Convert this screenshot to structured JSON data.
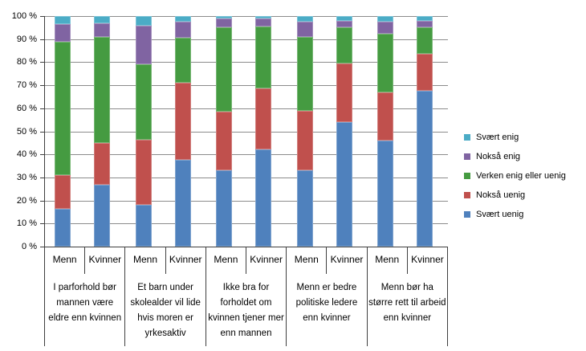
{
  "chart_data": {
    "type": "bar",
    "variant": "stacked-100-percent-column",
    "title": "",
    "xlabel": "",
    "ylabel": "",
    "y_axis": {
      "min": 0,
      "max": 100,
      "grid": true,
      "ticks": [
        "0 %",
        "10 %",
        "20 %",
        "30 %",
        "40 %",
        "50 %",
        "60 %",
        "70 %",
        "80 %",
        "90 %",
        "100 %"
      ]
    },
    "legend": {
      "position": "right",
      "items": [
        {
          "label": "Svært enig",
          "slug": "svaert-enig",
          "color": "#4BACC6"
        },
        {
          "label": "Nokså enig",
          "slug": "noksaa-enig",
          "color": "#8064A2"
        },
        {
          "label": "Verken enig eller uenig",
          "slug": "verken-enig-eller-uenig",
          "color": "#459B41"
        },
        {
          "label": "Nokså uenig",
          "slug": "noksaa-uenig",
          "color": "#C0504D"
        },
        {
          "label": "Svært uenig",
          "slug": "svaert-uenig",
          "color": "#4F81BD"
        }
      ]
    },
    "stack_order_bottom_to_top": [
      "Svært uenig",
      "Nokså uenig",
      "Verken enig eller uenig",
      "Nokså enig",
      "Svært enig"
    ],
    "groups": [
      {
        "category": "I parforhold bør mannen være eldre enn kvinnen",
        "bars": [
          {
            "label": "Menn",
            "values": {
              "Svært uenig": 16.5,
              "Nokså uenig": 14.5,
              "Verken enig eller uenig": 58,
              "Nokså enig": 7.5,
              "Svært enig": 3.5
            }
          },
          {
            "label": "Kvinner",
            "values": {
              "Svært uenig": 27,
              "Nokså uenig": 18,
              "Verken enig eller uenig": 46,
              "Nokså enig": 6,
              "Svært enig": 3
            }
          }
        ]
      },
      {
        "category": "Et barn under skolealder vil lide hvis moren er yrkesaktiv",
        "bars": [
          {
            "label": "Menn",
            "values": {
              "Svært uenig": 18,
              "Nokså uenig": 28.5,
              "Verken enig eller uenig": 32.5,
              "Nokså enig": 17,
              "Svært enig": 4
            }
          },
          {
            "label": "Kvinner",
            "values": {
              "Svært uenig": 37.5,
              "Nokså uenig": 33.5,
              "Verken enig eller uenig": 19.5,
              "Nokså enig": 7,
              "Svært enig": 2.5
            }
          }
        ]
      },
      {
        "category": "Ikke bra for forholdet om kvinnen tjener mer enn mannen",
        "bars": [
          {
            "label": "Menn",
            "values": {
              "Svært uenig": 33,
              "Nokså uenig": 25.5,
              "Verken enig eller uenig": 36.5,
              "Nokså enig": 4,
              "Svært enig": 1
            }
          },
          {
            "label": "Kvinner",
            "values": {
              "Svært uenig": 42,
              "Nokså uenig": 26.5,
              "Verken enig eller uenig": 27,
              "Nokså enig": 3.5,
              "Svært enig": 1
            }
          }
        ]
      },
      {
        "category": "Menn er bedre politiske ledere enn kvinner",
        "bars": [
          {
            "label": "Menn",
            "values": {
              "Svært uenig": 33,
              "Nokså uenig": 26,
              "Verken enig eller uenig": 32,
              "Nokså enig": 6.5,
              "Svært enig": 2.5
            }
          },
          {
            "label": "Kvinner",
            "values": {
              "Svært uenig": 54,
              "Nokså uenig": 25.5,
              "Verken enig eller uenig": 15.5,
              "Nokså enig": 3,
              "Svært enig": 2
            }
          }
        ]
      },
      {
        "category": "Menn bør ha større rett til arbeid enn kvinner",
        "bars": [
          {
            "label": "Menn",
            "values": {
              "Svært uenig": 46,
              "Nokså uenig": 21,
              "Verken enig eller uenig": 25.5,
              "Nokså enig": 5,
              "Svært enig": 2.5
            }
          },
          {
            "label": "Kvinner",
            "values": {
              "Svært uenig": 67.5,
              "Nokså uenig": 16,
              "Verken enig eller uenig": 11.5,
              "Nokså enig": 3,
              "Svært enig": 2
            }
          }
        ]
      }
    ]
  }
}
